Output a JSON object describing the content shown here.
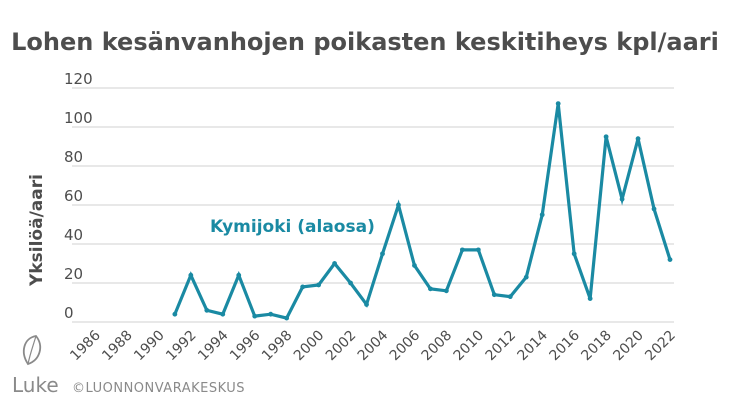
{
  "chart_data": {
    "type": "line",
    "title": "Lohen kesänvanhojen poikasten keskitiheys kpl/aari",
    "xlabel": "",
    "ylabel": "Yksilöä/aari",
    "xlim": [
      1986,
      2022
    ],
    "ylim": [
      0,
      120
    ],
    "y_ticks": [
      0,
      20,
      40,
      60,
      80,
      100,
      120
    ],
    "x_ticks": [
      1986,
      1988,
      1990,
      1992,
      1994,
      1996,
      1998,
      2000,
      2002,
      2004,
      2006,
      2008,
      2010,
      2012,
      2014,
      2016,
      2018,
      2020,
      2022
    ],
    "grid": "horizontal",
    "series": [
      {
        "name": "Kymijoki (alaosa)",
        "color": "#1a8aa3",
        "x": [
          1991,
          1992,
          1993,
          1994,
          1995,
          1996,
          1997,
          1998,
          1999,
          2000,
          2001,
          2002,
          2003,
          2004,
          2005,
          2006,
          2007,
          2008,
          2009,
          2010,
          2011,
          2012,
          2013,
          2014,
          2015,
          2016,
          2017,
          2018,
          2019,
          2020,
          2021,
          2022
        ],
        "values": [
          4,
          24,
          6,
          4,
          24,
          3,
          4,
          2,
          18,
          19,
          30,
          20,
          9,
          35,
          60,
          29,
          17,
          16,
          37,
          37,
          14,
          13,
          23,
          55,
          112,
          35,
          12,
          95,
          63,
          94,
          58,
          32
        ]
      }
    ]
  },
  "footer": {
    "logo": "Luke",
    "copyright": "©LUONNONVARAKESKUS"
  },
  "colors": {
    "text": "#4d4d4d",
    "grid": "#d0d0d0",
    "series": "#1a8aa3",
    "footer": "#8a8a8a"
  }
}
